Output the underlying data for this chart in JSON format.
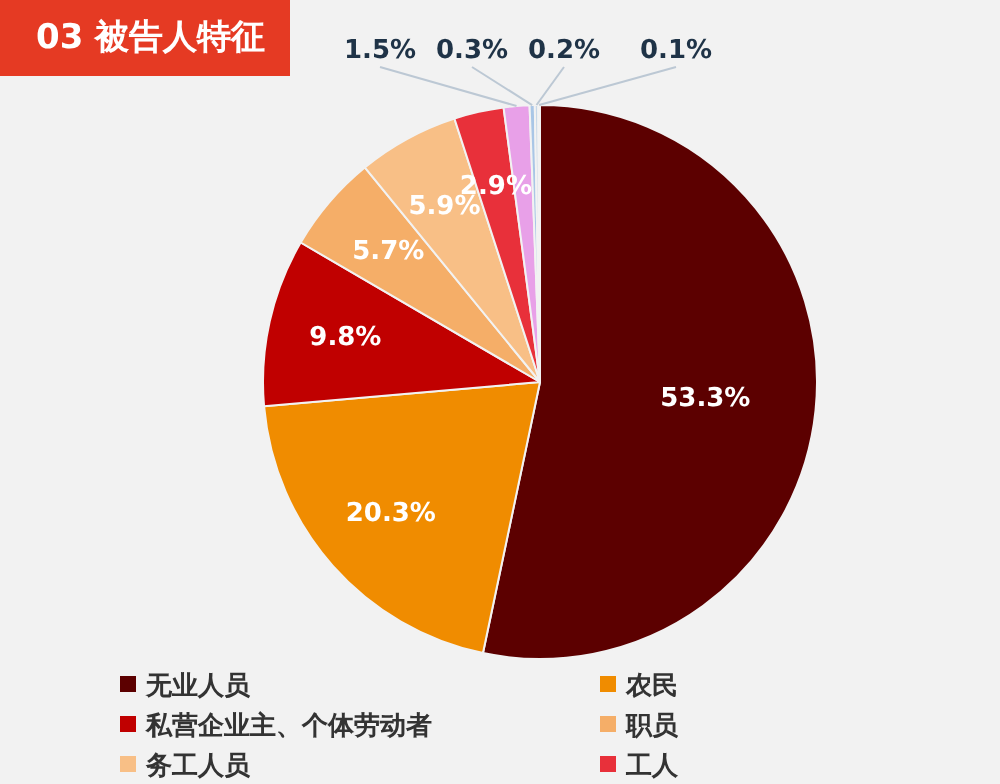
{
  "chart_data": {
    "type": "pie",
    "title": "03 被告人特征",
    "categories": [
      "无业人员",
      "农民",
      "私营企业主、个体劳动者",
      "职员",
      "务工人员",
      "工人",
      null,
      null,
      null,
      null
    ],
    "values": [
      53.3,
      20.3,
      9.8,
      5.7,
      5.9,
      2.9,
      1.5,
      0.3,
      0.2,
      0.1
    ],
    "colors": [
      "#5c0000",
      "#f08c00",
      "#c00000",
      "#f5ae68",
      "#f8bf86",
      "#e8303a",
      "#e8a0e8",
      "#a9c6e6",
      "#c8d8e8",
      "#b8c8d8"
    ],
    "value_labels": [
      "53.3%",
      "20.3%",
      "9.8%",
      "5.7%",
      "5.9%",
      "2.9%",
      "1.5%",
      "0.3%",
      "0.2%",
      "0.1%"
    ],
    "legend": "bottom"
  }
}
